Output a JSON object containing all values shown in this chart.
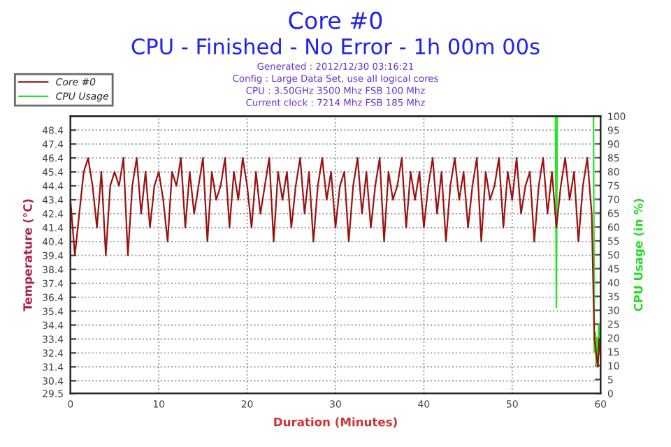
{
  "chart_data": {
    "type": "line",
    "title": "Core #0",
    "subtitle": "CPU - Finished - No Error - 1h 00m 00s",
    "annotations": [
      "Generated : 2012/12/30 03:16:21",
      "Config : Large Data Set, use all logical cores",
      "CPU : 3.50GHz 3500 Mhz FSB 100 Mhz",
      "Current clock : 7214 Mhz FSB 185 Mhz"
    ],
    "xlabel": "Duration (Minutes)",
    "ylabel": "Temperature (°C)",
    "y2label": "CPU Usage (in %)",
    "series": [
      {
        "name": "Core #0",
        "color": "#9b1111",
        "x": [
          0,
          0.5,
          1,
          1.5,
          2,
          2.5,
          3,
          3.5,
          4,
          4.5,
          5,
          5.5,
          6,
          6.5,
          7,
          7.5,
          8,
          8.5,
          9,
          9.5,
          10,
          10.5,
          11,
          11.5,
          12,
          12.5,
          13,
          13.5,
          14,
          14.5,
          15,
          15.5,
          16,
          16.5,
          17,
          17.5,
          18,
          18.5,
          19,
          19.5,
          20,
          20.5,
          21,
          21.5,
          22,
          22.5,
          23,
          23.5,
          24,
          24.5,
          25,
          25.5,
          26,
          26.5,
          27,
          27.5,
          28,
          28.5,
          29,
          29.5,
          30,
          30.5,
          31,
          31.5,
          32,
          32.5,
          33,
          33.5,
          34,
          34.5,
          35,
          35.5,
          36,
          36.5,
          37,
          37.5,
          38,
          38.5,
          39,
          39.5,
          40,
          40.5,
          41,
          41.5,
          42,
          42.5,
          43,
          43.5,
          44,
          44.5,
          45,
          45.5,
          46,
          46.5,
          47,
          47.5,
          48,
          48.5,
          49,
          49.5,
          50,
          50.5,
          51,
          51.5,
          52,
          52.5,
          53,
          53.5,
          54,
          54.5,
          55,
          55.5,
          56,
          56.5,
          57,
          57.5,
          58,
          58.5,
          59,
          59.3,
          59.5,
          59.7,
          59.85,
          60
        ],
        "values": [
          43.4,
          39.4,
          42.4,
          45.4,
          46.4,
          44.4,
          41.4,
          45.4,
          39.4,
          44.4,
          45.4,
          44.4,
          46.4,
          39.4,
          44.4,
          46.4,
          42.4,
          45.4,
          41.4,
          44.4,
          45.4,
          43.4,
          40.4,
          45.4,
          44.4,
          46.4,
          41.4,
          45.4,
          42.4,
          44.4,
          46.4,
          40.4,
          45.4,
          43.4,
          44.4,
          46.4,
          41.4,
          45.4,
          43.4,
          46.4,
          44.4,
          41.4,
          45.4,
          42.4,
          44.4,
          46.4,
          40.4,
          45.4,
          43.4,
          45.4,
          41.4,
          44.4,
          46.4,
          42.4,
          45.4,
          40.4,
          44.4,
          46.4,
          43.4,
          45.4,
          41.4,
          44.4,
          45.4,
          40.4,
          44.4,
          46.4,
          42.4,
          45.4,
          41.4,
          44.4,
          46.4,
          40.4,
          45.4,
          43.4,
          44.4,
          46.4,
          41.4,
          45.4,
          43.4,
          45.4,
          41.4,
          44.4,
          46.4,
          42.4,
          45.4,
          40.4,
          44.4,
          46.4,
          43.4,
          45.4,
          41.4,
          44.4,
          46.4,
          40.4,
          45.4,
          43.4,
          44.4,
          46.4,
          41.4,
          45.4,
          43.4,
          46.4,
          42.4,
          44.4,
          45.4,
          40.4,
          44.4,
          46.4,
          42.4,
          45.4,
          41.4,
          44.4,
          46.4,
          43.4,
          45.4,
          40.4,
          44.4,
          46.4,
          42.4,
          33.4,
          32.4,
          31.4,
          33.4,
          32.4
        ]
      },
      {
        "name": "CPU Usage",
        "color": "#22e622",
        "axis": "y2",
        "x": [
          0,
          54.9,
          55,
          55.1,
          59.2,
          59.3,
          59.4,
          59.5,
          59.6,
          59.7,
          59.8,
          59.9,
          60
        ],
        "values": [
          100,
          100,
          31,
          100,
          100,
          15,
          22,
          10,
          20,
          12,
          25,
          14,
          18
        ]
      }
    ],
    "xlim": [
      0,
      60
    ],
    "xticks": [
      0,
      10,
      20,
      30,
      40,
      50,
      60
    ],
    "ylim": [
      29.5,
      49.4
    ],
    "yticks": [
      29.5,
      30.4,
      31.4,
      32.4,
      33.4,
      34.4,
      35.4,
      36.4,
      37.4,
      38.4,
      39.4,
      40.4,
      41.4,
      42.4,
      43.4,
      44.4,
      45.4,
      46.4,
      47.4,
      48.4
    ],
    "y2lim": [
      0,
      100
    ],
    "y2ticks": [
      0,
      5,
      10,
      15,
      20,
      25,
      30,
      35,
      40,
      45,
      50,
      55,
      60,
      65,
      70,
      75,
      80,
      85,
      90,
      95,
      100
    ],
    "grid": true,
    "legend": "top left",
    "marker": "none",
    "line_style": "solid"
  }
}
